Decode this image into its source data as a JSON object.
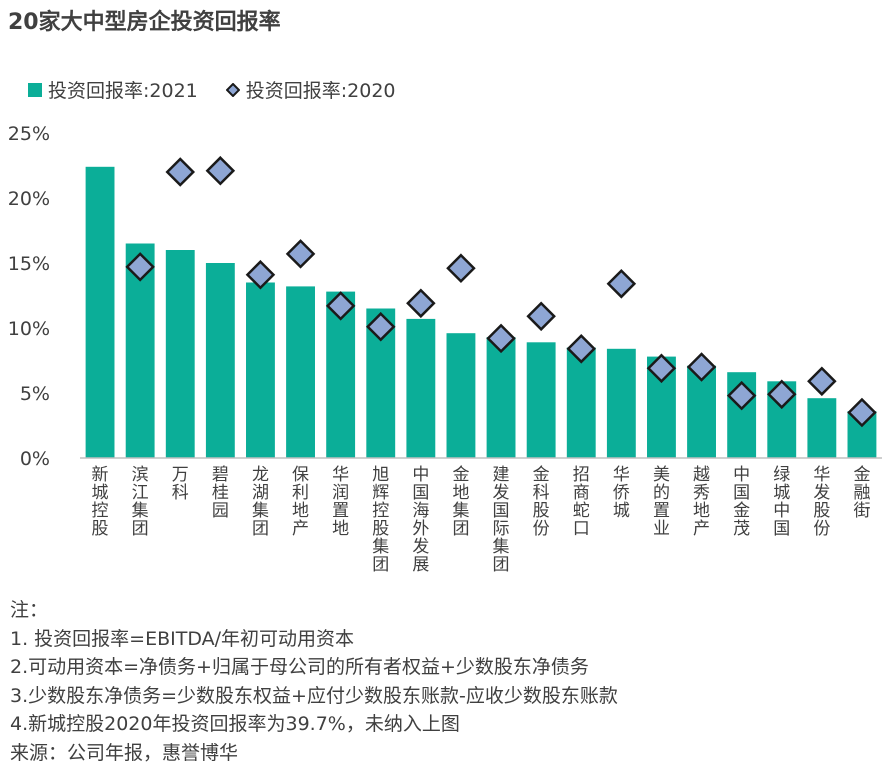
{
  "title": "20家大中型房企投资回报率",
  "colors": {
    "bar": "#0BAE98",
    "diamond_fill": "#8EA6D4",
    "diamond_stroke": "#1a1a1a",
    "axis": "#bfbfbf",
    "text": "#404040"
  },
  "chart_data": {
    "type": "bar",
    "title": "20家大中型房企投资回报率",
    "categories": [
      "新城控股",
      "滨江集团",
      "万科",
      "碧桂园",
      "龙湖集团",
      "保利地产",
      "华润置地",
      "旭辉控股集团",
      "中国海外发展",
      "金地集团",
      "建发国际集团",
      "金科股份",
      "招商蛇口",
      "华侨城",
      "美的置业",
      "越秀地产",
      "中国金茂",
      "绿城中国",
      "华发股份",
      "金融街"
    ],
    "series": [
      {
        "name": "投资回报率:2021",
        "kind": "bar",
        "values": [
          22.4,
          16.5,
          16.0,
          15.0,
          13.5,
          13.2,
          12.8,
          11.5,
          10.7,
          9.6,
          9.3,
          8.9,
          8.5,
          8.4,
          7.8,
          7.1,
          6.6,
          5.9,
          4.6,
          3.6
        ]
      },
      {
        "name": "投资回报率:2020",
        "kind": "marker-diamond",
        "values": [
          null,
          14.7,
          22.0,
          22.1,
          14.1,
          15.7,
          11.7,
          10.1,
          11.9,
          14.6,
          9.2,
          10.9,
          8.4,
          13.4,
          6.9,
          7.0,
          4.8,
          4.9,
          5.9,
          3.5
        ]
      }
    ],
    "y_ticks": [
      "0%",
      "5%",
      "10%",
      "15%",
      "20%",
      "25%"
    ],
    "ylim": [
      0,
      25
    ],
    "legend_position": "top-left",
    "grid": false
  },
  "notes": [
    "注：",
    "1. 投资回报率=EBITDA/年初可动用资本",
    "2.可动用资本=净债务+归属于母公司的所有者权益+少数股东净债务",
    "3.少数股东净债务=少数股东权益+应付少数股东账款-应收少数股东账款",
    "4.新城控股2020年投资回报率为39.7%，未纳入上图",
    "来源：公司年报，惠誉博华"
  ]
}
